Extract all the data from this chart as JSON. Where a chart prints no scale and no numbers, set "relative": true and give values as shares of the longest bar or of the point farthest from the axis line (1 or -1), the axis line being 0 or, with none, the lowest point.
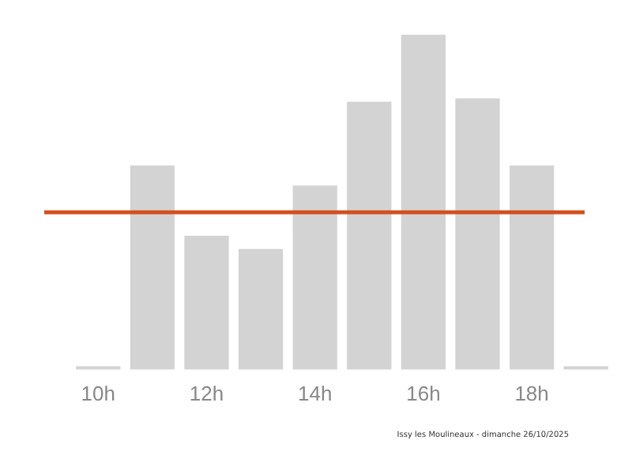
{
  "chart_data": {
    "type": "bar",
    "relative": true,
    "categories": [
      "10h",
      null,
      "12h",
      null,
      "14h",
      null,
      "16h",
      null,
      "18h",
      null
    ],
    "values": [
      0.01,
      0.61,
      0.4,
      0.36,
      0.55,
      0.8,
      1,
      0.81,
      0.61,
      0.01
    ],
    "color": "#d3d3d3",
    "ref_lines": [
      {
        "axis": "y",
        "value": 0.47,
        "color": "#d4501e"
      }
    ],
    "annotations": [
      "Issy les Moulineaux - dimanche 26/10/2025"
    ],
    "grid": false,
    "legend": false
  }
}
